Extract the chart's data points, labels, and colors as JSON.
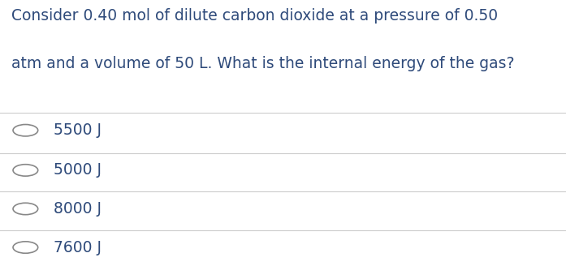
{
  "question_line1": "Consider 0.40 mol of dilute carbon dioxide at a pressure of 0.50",
  "question_line2": "atm and a volume of 50 L. What is the internal energy of the gas?",
  "options": [
    "5500 J",
    "5000 J",
    "8000 J",
    "7600 J"
  ],
  "background_color": "#ffffff",
  "text_color": "#2e4a7a",
  "line_color": "#cccccc",
  "question_fontsize": 13.5,
  "option_fontsize": 13.5,
  "circle_color": "#888888"
}
